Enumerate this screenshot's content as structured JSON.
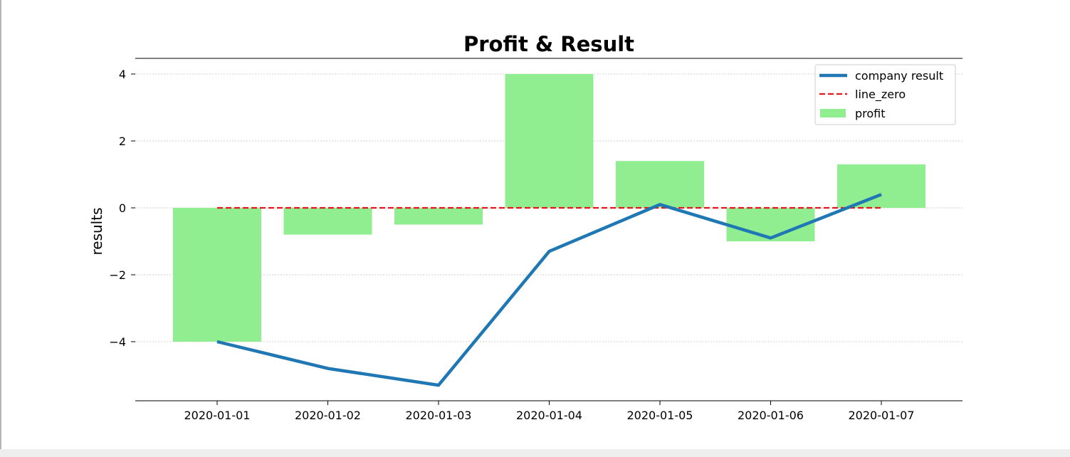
{
  "chart_data": {
    "type": "bar",
    "title": "Profit & Result",
    "xlabel": "",
    "ylabel": "results",
    "categories": [
      "2020-01-01",
      "2020-01-02",
      "2020-01-03",
      "2020-01-04",
      "2020-01-05",
      "2020-01-06",
      "2020-01-07"
    ],
    "ylim": [
      -5.8,
      4.5
    ],
    "yticks": [
      4,
      2,
      0,
      -2,
      -4
    ],
    "ytick_labels": [
      "4",
      "2",
      "0",
      "−2",
      "−4"
    ],
    "grid": "horizontal dotted",
    "legend_position": "upper-right",
    "series": [
      {
        "name": "company result",
        "kind": "line",
        "style": "solid",
        "color": "#1f77b4",
        "values": [
          -4.0,
          -4.8,
          -5.3,
          -1.3,
          0.1,
          -0.9,
          0.4
        ]
      },
      {
        "name": "line_zero",
        "kind": "line",
        "style": "dashed",
        "color": "#e8141b",
        "values": [
          0,
          0,
          0,
          0,
          0,
          0,
          0
        ]
      },
      {
        "name": "profit",
        "kind": "bar",
        "color": "#90ee90",
        "values": [
          -4.0,
          -0.8,
          -0.5,
          4.0,
          1.4,
          -1.0,
          1.3
        ]
      }
    ]
  }
}
